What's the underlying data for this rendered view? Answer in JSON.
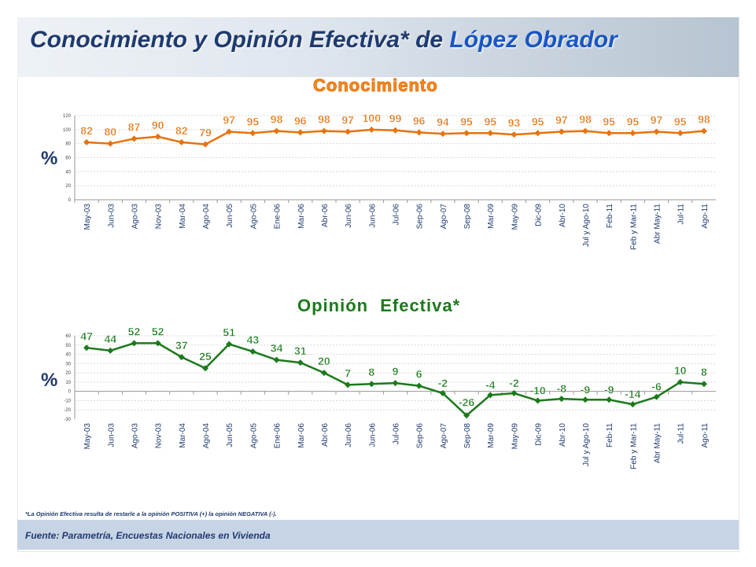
{
  "header": {
    "title_part1": "Conocimiento y Opinión Efectiva* de ",
    "title_part2": "López Obrador"
  },
  "ylabel_symbol": "%",
  "footnote": "*La Opinión Efectiva resulta de restarle a la opinión POSITIVA (+) la opinión NEGATIVA (-).",
  "source": "Fuente: Parametría, Encuestas Nacionales en Vivienda",
  "colors": {
    "conocimiento": "#e8720c",
    "opinion": "#1b7a1b",
    "axis_text": "#1f3a6e"
  },
  "chart_data": [
    {
      "type": "line",
      "title": "Conocimiento",
      "ylabel": "%",
      "ylim": [
        0,
        120
      ],
      "yticks": [
        0,
        20,
        40,
        60,
        80,
        100,
        120
      ],
      "grid": true,
      "categories": [
        "May-03",
        "Jun-03",
        "Ago-03",
        "Nov-03",
        "Mar-04",
        "Ago-04",
        "Jun-05",
        "Ago-05",
        "Ene-06",
        "Mar-06",
        "Abr-06",
        "Jun-06",
        "Jun-06",
        "Jul-06",
        "Sep-06",
        "Ago-07",
        "Sep-08",
        "Mar-09",
        "May-09",
        "Dic-09",
        "Abr-10",
        "Jul y Ago-10",
        "Feb-11",
        "Feb y Mar-11",
        "Abr May-11",
        "Jul-11",
        "Ago-11"
      ],
      "values": [
        82,
        80,
        87,
        90,
        82,
        79,
        97,
        95,
        98,
        96,
        98,
        97,
        100,
        99,
        96,
        94,
        95,
        95,
        93,
        95,
        97,
        98,
        95,
        95,
        97,
        95,
        98
      ]
    },
    {
      "type": "line",
      "title": "Opinión  Efectiva*",
      "ylabel": "%",
      "ylim": [
        -30,
        60
      ],
      "yticks": [
        -30,
        -20,
        -10,
        0,
        10,
        20,
        30,
        40,
        50,
        60
      ],
      "grid": true,
      "categories": [
        "May-03",
        "Jun-03",
        "Ago-03",
        "Nov-03",
        "Mar-04",
        "Ago-04",
        "Jun-05",
        "Ago-05",
        "Ene-06",
        "Mar-06",
        "Abr-06",
        "Jun-06",
        "Jun-06",
        "Jul-06",
        "Sep-06",
        "Ago-07",
        "Sep-08",
        "Mar-09",
        "May-09",
        "Dic-09",
        "Abr-10",
        "Jul y Ago-10",
        "Feb-11",
        "Feb y Mar-11",
        "Abr May-11",
        "Jul-11",
        "Ago-11"
      ],
      "values": [
        47,
        44,
        52,
        52,
        37,
        25,
        51,
        43,
        34,
        31,
        20,
        7,
        8,
        9,
        6,
        -2,
        -26,
        -4,
        -2,
        -10,
        -8,
        -9,
        -9,
        -14,
        -6,
        10,
        8
      ]
    }
  ]
}
